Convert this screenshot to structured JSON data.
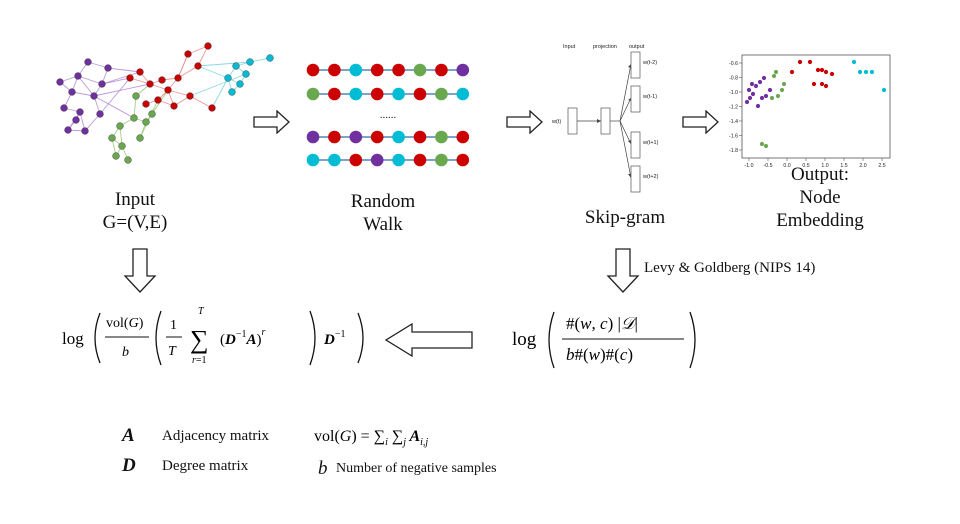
{
  "input": {
    "line1": "Input",
    "line2": "G=(V,E)"
  },
  "random_walk": {
    "line1": "Random",
    "line2": "Walk",
    "ellipsis": "......"
  },
  "skipgram": {
    "label": "Skip-gram",
    "col_input": "Input",
    "col_projection": "projection",
    "col_output": "output",
    "center_word": "w(t)",
    "outputs": [
      "w(t-2)",
      "w(t-1)",
      "w(t+1)",
      "w(t+2)"
    ]
  },
  "output": {
    "line1": "Output:",
    "line2": "Node",
    "line3": "Embedding"
  },
  "reference": "Levy & Goldberg (NIPS 14)",
  "legend": {
    "a_symbol": "A",
    "a_text": "Adjacency matrix",
    "d_symbol": "D",
    "d_text": "Degree matrix",
    "b_symbol": "b",
    "b_text": "Number of negative samples"
  },
  "walk_colors": {
    "red": "#cc0000",
    "green": "#6aa84f",
    "cyan": "#00bcd4",
    "purple": "#7030a0"
  },
  "scatter": {
    "x_ticks": [
      "-1.0",
      "-0.5",
      "0.0",
      "0.5",
      "1.0",
      "1.5",
      "2.0",
      "2.5"
    ],
    "y_ticks": [
      "-0.6",
      "-0.8",
      "-1.0",
      "-1.2",
      "-1.4",
      "-1.6",
      "-1.8"
    ]
  }
}
